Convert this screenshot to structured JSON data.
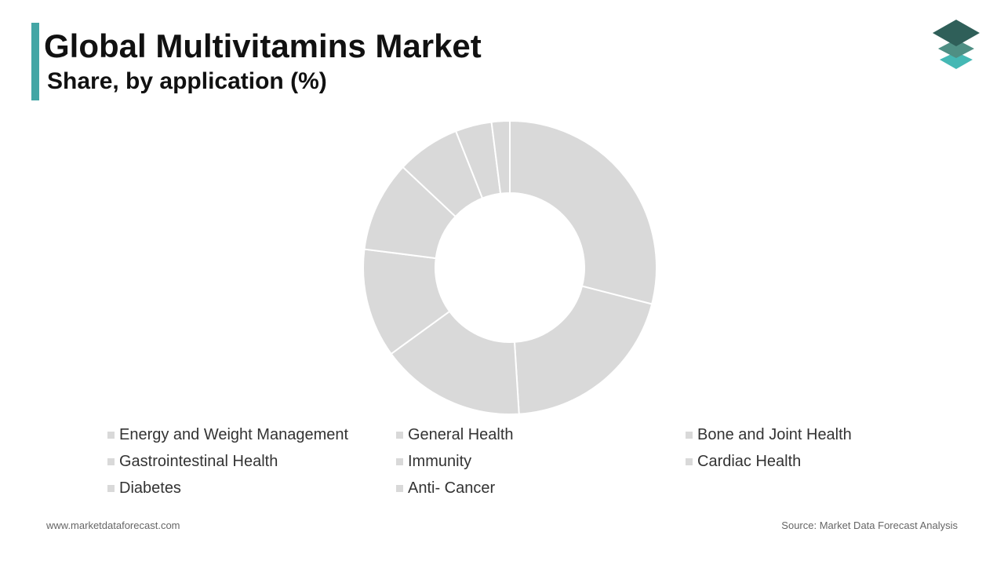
{
  "header": {
    "title": "Global Multivitamins Market",
    "subtitle": "Share, by application (%)"
  },
  "colors": {
    "accent": "#43a6a5",
    "slice": "#d9d9d9",
    "logo_dark": "#2f5f59",
    "logo_mid": "#4f8f84",
    "logo_light": "#45b8b4"
  },
  "chart_data": {
    "type": "pie",
    "donut": true,
    "title": "Global Multivitamins Market",
    "subtitle": "Share, by application (%)",
    "legend_position": "bottom",
    "categories": [
      "Energy and Weight Management",
      "General Health",
      "Bone and Joint Health",
      "Gastrointestinal Health",
      "Immunity",
      "Cardiac Health",
      "Diabetes",
      "Anti- Cancer"
    ],
    "values": [
      29,
      20,
      16,
      12,
      10,
      7,
      4,
      2
    ]
  },
  "footer": {
    "website": "www.marketdataforecast.com",
    "source": "Source: Market Data Forecast Analysis"
  },
  "logo_icon": "stacked-layers-icon"
}
